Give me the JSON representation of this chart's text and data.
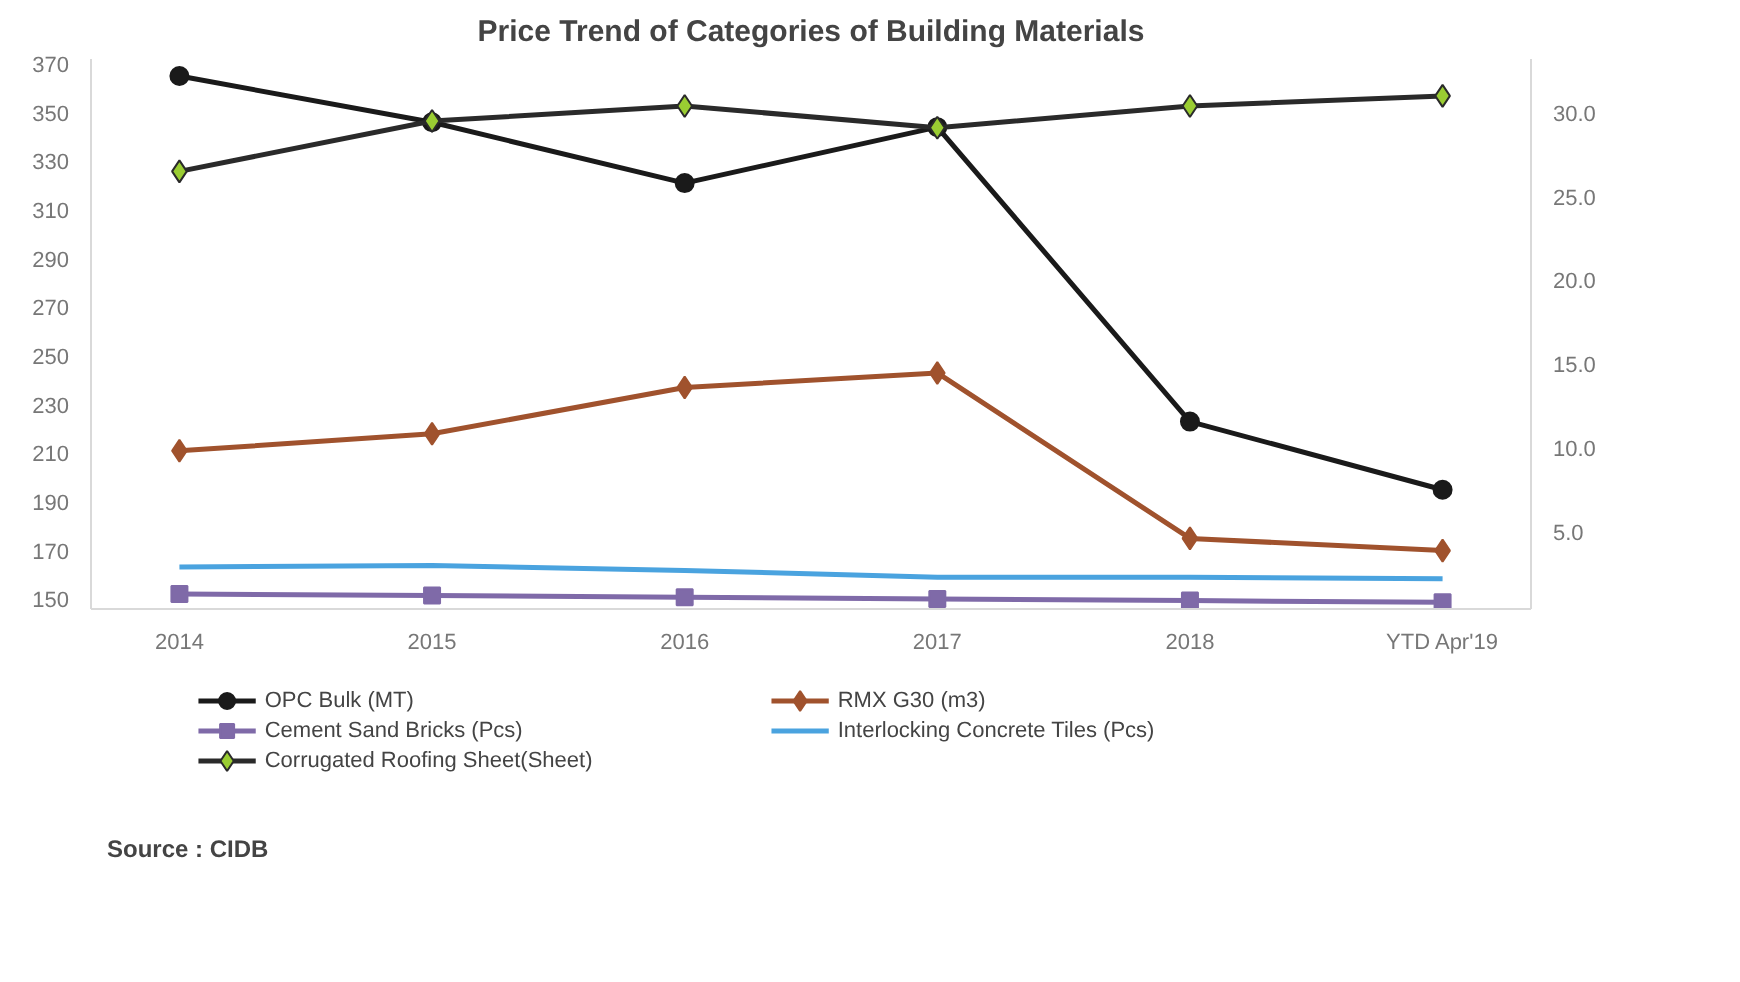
{
  "chart_data": {
    "type": "line",
    "title": "Price Trend of Categories of Building Materials",
    "categories": [
      "2014",
      "2015",
      "2016",
      "2017",
      "2018",
      "YTD Apr'19"
    ],
    "series": [
      {
        "name": "OPC Bulk (MT)",
        "color": "#1a1a1a",
        "marker": "circle",
        "values": [
          365,
          346,
          321,
          344,
          223,
          195
        ]
      },
      {
        "name": "RMX G30 (m3)",
        "color": "#a0522d",
        "marker": "diamond",
        "values": [
          211,
          218,
          237,
          243,
          175,
          170
        ]
      },
      {
        "name": "Cement Sand Bricks (Pcs)",
        "color": "#7f6aa8",
        "marker": "square",
        "axis": "y2",
        "values": [
          1.3,
          1.2,
          1.1,
          1.0,
          0.9,
          0.8
        ]
      },
      {
        "name": "Interlocking Concrete Tiles (Pcs)",
        "color": "#4aa3df",
        "marker": "none",
        "axis": "y2",
        "values": [
          2.9,
          3.0,
          2.7,
          2.3,
          2.3,
          2.2
        ]
      },
      {
        "name": "Corrugated Roofing Sheet(Sheet)",
        "color": "#2a2a2a",
        "marker": "diamond",
        "axis": "y2",
        "values": [
          26.5,
          29.5,
          30.4,
          29.1,
          30.4,
          31.0
        ]
      }
    ],
    "ylim": [
      146,
      372
    ],
    "yticks": [
      150,
      170,
      190,
      210,
      230,
      250,
      270,
      290,
      310,
      330,
      350,
      370
    ],
    "y2lim": [
      0.4,
      33.2
    ],
    "y2ticks": [
      {
        "value": 5,
        "label": "5.0"
      },
      {
        "value": 10,
        "label": "10.0"
      },
      {
        "value": 15,
        "label": "15.0"
      },
      {
        "value": 20,
        "label": "20.0"
      },
      {
        "value": 25,
        "label": "25.0"
      },
      {
        "value": 30,
        "label": "30.0"
      }
    ],
    "grid": false,
    "legend": "bottom",
    "line_style": "solid",
    "annotations": [
      "Source : CIDB"
    ]
  }
}
